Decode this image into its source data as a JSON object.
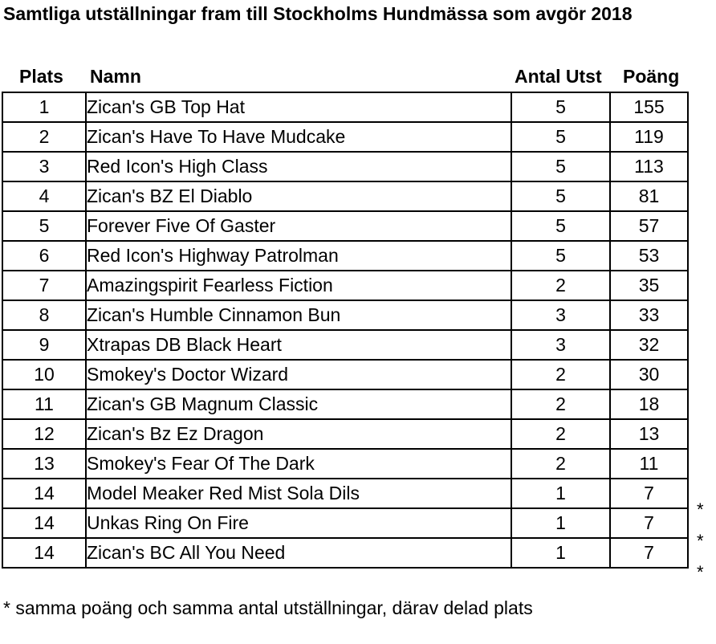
{
  "title": "Samtliga utställningar fram till Stockholms Hundmässa som avgör 2018",
  "headers": {
    "plats": "Plats",
    "namn": "Namn",
    "antal": "Antal Utst",
    "poang": "Poäng"
  },
  "rows": [
    {
      "plats": "1",
      "namn": "Zican's GB Top Hat",
      "antal": "5",
      "poang": "155"
    },
    {
      "plats": "2",
      "namn": "Zican's Have To Have Mudcake",
      "antal": "5",
      "poang": "119"
    },
    {
      "plats": "3",
      "namn": "Red Icon's High Class",
      "antal": "5",
      "poang": "113"
    },
    {
      "plats": "4",
      "namn": "Zican's BZ El Diablo",
      "antal": "5",
      "poang": "81"
    },
    {
      "plats": "5",
      "namn": "Forever Five Of Gaster",
      "antal": "5",
      "poang": "57"
    },
    {
      "plats": "6",
      "namn": "Red Icon's Highway Patrolman",
      "antal": "5",
      "poang": "53"
    },
    {
      "plats": "7",
      "namn": "Amazingspirit Fearless Fiction",
      "antal": "2",
      "poang": "35"
    },
    {
      "plats": "8",
      "namn": "Zican's Humble Cinnamon Bun",
      "antal": "3",
      "poang": "33"
    },
    {
      "plats": "9",
      "namn": "Xtrapas DB Black Heart",
      "antal": "3",
      "poang": "32"
    },
    {
      "plats": "10",
      "namn": "Smokey's Doctor Wizard",
      "antal": "2",
      "poang": "30"
    },
    {
      "plats": "11",
      "namn": "Zican's GB Magnum Classic",
      "antal": "2",
      "poang": "18"
    },
    {
      "plats": "12",
      "namn": "Zican's Bz Ez Dragon",
      "antal": "2",
      "poang": "13"
    },
    {
      "plats": "13",
      "namn": "Smokey's Fear Of The Dark",
      "antal": "2",
      "poang": "11"
    },
    {
      "plats": "14",
      "namn": "Model Meaker Red Mist Sola Dils",
      "antal": "1",
      "poang": "7",
      "mark": "*"
    },
    {
      "plats": "14",
      "namn": "Unkas Ring On Fire",
      "antal": "1",
      "poang": "7",
      "mark": "*"
    },
    {
      "plats": "14",
      "namn": "Zican's BC All You Need",
      "antal": "1",
      "poang": "7",
      "mark": "*"
    }
  ],
  "footnote": "* samma poäng och samma antal utställningar, därav delad plats"
}
